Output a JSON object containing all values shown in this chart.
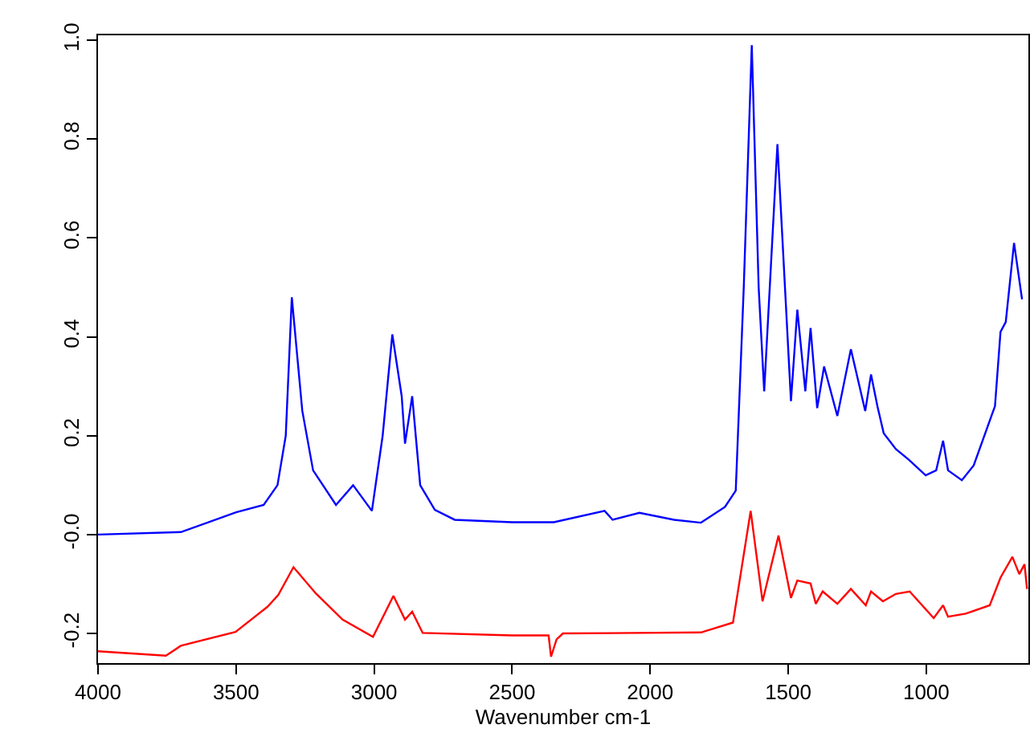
{
  "chart_data": {
    "type": "line",
    "xlabel": "Wavenumber cm-1",
    "xlim": [
      4000,
      630
    ],
    "ylim": [
      -0.26,
      1.01
    ],
    "xticks": [
      4000,
      3500,
      3000,
      2500,
      2000,
      1500,
      1000
    ],
    "yticks": [
      -0.2,
      {
        "value": 0,
        "label": "-0.0"
      },
      0.2,
      0.4,
      0.6,
      0.8,
      {
        "value": 1,
        "label": "1.0"
      }
    ],
    "marker": "none",
    "line_style": "solid",
    "series": [
      {
        "color": "#0000ff",
        "x": [
          4000,
          3700,
          3500,
          3400,
          3350,
          3320,
          3298,
          3260,
          3221,
          3138,
          3076,
          3008,
          2969,
          2934,
          2900,
          2888,
          2862,
          2833,
          2780,
          2708,
          2500,
          2349,
          2165,
          2136,
          2039,
          1913,
          1816,
          1729,
          1690,
          1661,
          1632,
          1607,
          1587,
          1539,
          1490,
          1467,
          1438,
          1419,
          1395,
          1370,
          1322,
          1273,
          1221,
          1200,
          1177,
          1154,
          1110,
          1064,
          1002,
          964,
          939,
          921,
          871,
          828,
          751,
          731,
          712,
          682,
          653
        ],
        "values": [
          0.0,
          0.005,
          0.045,
          0.06,
          0.1,
          0.2,
          0.48,
          0.25,
          0.13,
          0.06,
          0.1,
          0.048,
          0.2,
          0.405,
          0.28,
          0.184,
          0.28,
          0.1,
          0.05,
          0.03,
          0.025,
          0.025,
          0.048,
          0.03,
          0.044,
          0.03,
          0.024,
          0.056,
          0.089,
          0.5,
          0.99,
          0.5,
          0.29,
          0.79,
          0.27,
          0.455,
          0.29,
          0.418,
          0.256,
          0.34,
          0.24,
          0.375,
          0.25,
          0.324,
          0.26,
          0.205,
          0.173,
          0.152,
          0.12,
          0.13,
          0.19,
          0.13,
          0.11,
          0.14,
          0.26,
          0.41,
          0.43,
          0.59,
          0.476
        ]
      },
      {
        "color": "#ff0000",
        "x": [
          4000,
          3754,
          3700,
          3502,
          3386,
          3347,
          3292,
          3211,
          3114,
          3004,
          2930,
          2888,
          2862,
          2824,
          2500,
          2368,
          2359,
          2339,
          2316,
          1816,
          1700,
          1636,
          1593,
          1535,
          1490,
          1467,
          1419,
          1400,
          1375,
          1322,
          1273,
          1219,
          1200,
          1157,
          1110,
          1060,
          973,
          939,
          921,
          857,
          770,
          731,
          688,
          663,
          644,
          635
        ],
        "values": [
          -0.236,
          -0.245,
          -0.225,
          -0.197,
          -0.146,
          -0.122,
          -0.066,
          -0.119,
          -0.172,
          -0.207,
          -0.124,
          -0.172,
          -0.156,
          -0.199,
          -0.204,
          -0.204,
          -0.247,
          -0.212,
          -0.2,
          -0.198,
          -0.178,
          0.048,
          -0.135,
          -0.002,
          -0.128,
          -0.093,
          -0.099,
          -0.14,
          -0.115,
          -0.14,
          -0.11,
          -0.143,
          -0.115,
          -0.135,
          -0.12,
          -0.115,
          -0.169,
          -0.143,
          -0.166,
          -0.16,
          -0.143,
          -0.087,
          -0.045,
          -0.08,
          -0.06,
          -0.11
        ]
      }
    ]
  }
}
